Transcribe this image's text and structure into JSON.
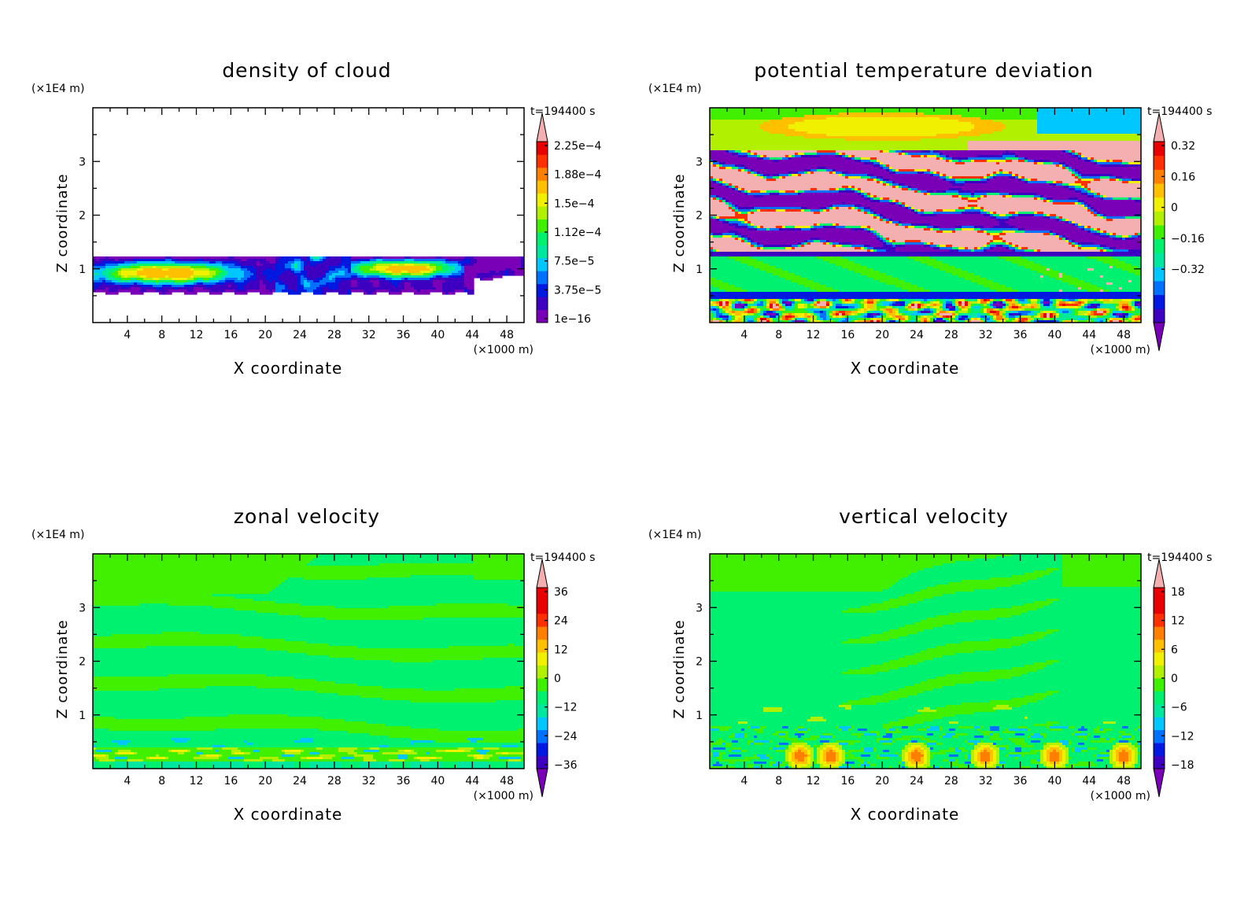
{
  "chart_data": [
    {
      "type": "heatmap",
      "id": "cloud",
      "title": "density of cloud",
      "xlabel": "X coordinate",
      "ylabel": "Z coordinate",
      "x_unit": "(×1000 m)",
      "y_unit": "(×1E4 m)",
      "time_label": "t=194400 s",
      "xlim": [
        0,
        50
      ],
      "ylim": [
        0,
        4
      ],
      "x_ticks": [
        4,
        8,
        12,
        16,
        20,
        24,
        28,
        32,
        36,
        40,
        44,
        48
      ],
      "y_ticks": [
        1,
        2,
        3
      ],
      "colorbar": {
        "labels": [
          "2.25e−4",
          "1.88e−4",
          "1.5e−4",
          "1.12e−4",
          "7.5e−5",
          "3.75e−5",
          "1e−16"
        ],
        "bottom_arrow": false
      }
    },
    {
      "type": "heatmap",
      "id": "theta",
      "title": "potential temperature deviation",
      "xlabel": "X coordinate",
      "ylabel": "Z coordinate",
      "x_unit": "(×1000 m)",
      "y_unit": "(×1E4 m)",
      "time_label": "t=194400 s",
      "xlim": [
        0,
        50
      ],
      "ylim": [
        0,
        4
      ],
      "x_ticks": [
        4,
        8,
        12,
        16,
        20,
        24,
        28,
        32,
        36,
        40,
        44,
        48
      ],
      "y_ticks": [
        1,
        2,
        3
      ],
      "colorbar": {
        "labels": [
          "0.32",
          "0.16",
          "0",
          "−0.16",
          "−0.32"
        ],
        "bottom_arrow": true
      }
    },
    {
      "type": "heatmap",
      "id": "zonal",
      "title": "zonal velocity",
      "xlabel": "X coordinate",
      "ylabel": "Z coordinate",
      "x_unit": "(×1000 m)",
      "y_unit": "(×1E4 m)",
      "time_label": "t=194400 s",
      "xlim": [
        0,
        50
      ],
      "ylim": [
        0,
        4
      ],
      "x_ticks": [
        4,
        8,
        12,
        16,
        20,
        24,
        28,
        32,
        36,
        40,
        44,
        48
      ],
      "y_ticks": [
        1,
        2,
        3
      ],
      "colorbar": {
        "labels": [
          "36",
          "24",
          "12",
          "0",
          "−12",
          "−24",
          "−36"
        ],
        "bottom_arrow": true
      }
    },
    {
      "type": "heatmap",
      "id": "vertical",
      "title": "vertical velocity",
      "xlabel": "X coordinate",
      "ylabel": "Z coordinate",
      "x_unit": "(×1000 m)",
      "y_unit": "(×1E4 m)",
      "time_label": "t=194400 s",
      "xlim": [
        0,
        50
      ],
      "ylim": [
        0,
        4
      ],
      "x_ticks": [
        4,
        8,
        12,
        16,
        20,
        24,
        28,
        32,
        36,
        40,
        44,
        48
      ],
      "y_ticks": [
        1,
        2,
        3
      ],
      "colorbar": {
        "labels": [
          "18",
          "12",
          "6",
          "0",
          "−6",
          "−12",
          "−18"
        ],
        "bottom_arrow": true
      }
    }
  ],
  "palette": [
    "#7a00b8",
    "#3d00c0",
    "#0018e0",
    "#0070ff",
    "#00c8ff",
    "#00e8a0",
    "#00f070",
    "#40f000",
    "#b0f000",
    "#f0f000",
    "#ffc000",
    "#ff8000",
    "#ff3000",
    "#e80000",
    "#f4b0b0"
  ]
}
